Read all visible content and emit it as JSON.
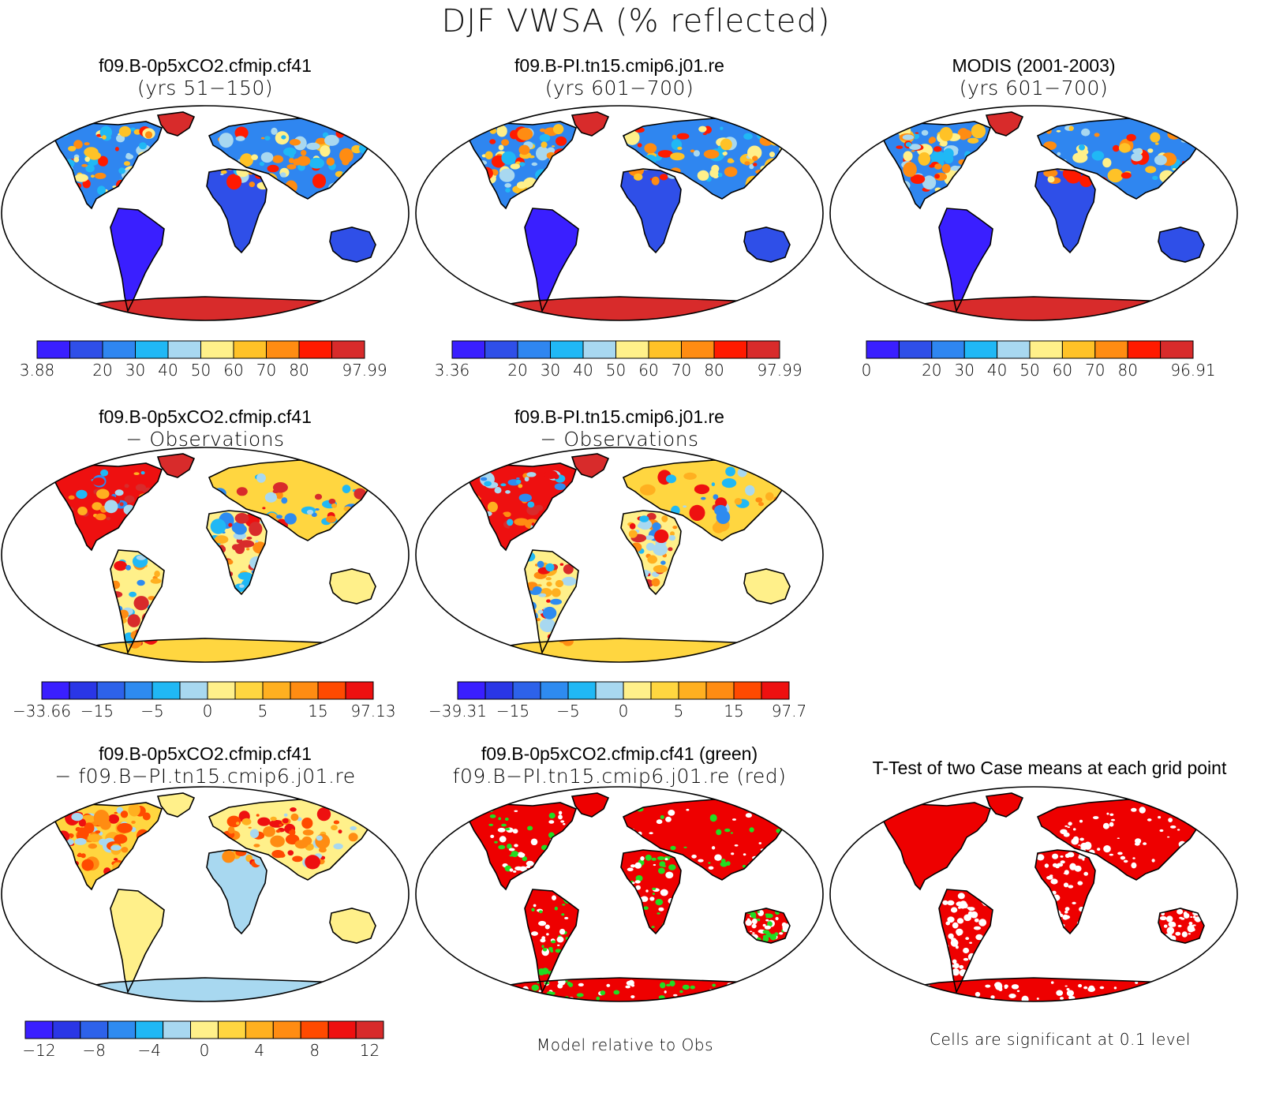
{
  "title": "DJF VWSA (% reflected)",
  "land_colors": {
    "ocean": "#ffffff",
    "outline": "#000000",
    "green": "#22dd22",
    "red": "#ee0000"
  },
  "palette_abs": [
    "#3a1fff",
    "#2f4fe8",
    "#2f86f0",
    "#20b8f5",
    "#a8d8f0",
    "#fff08a",
    "#ffc227",
    "#ff8c12",
    "#ff1a00",
    "#d82b2b"
  ],
  "palette_diff": [
    "#3a1fff",
    "#2a36e6",
    "#2d62ea",
    "#2e8bf0",
    "#20b8f5",
    "#a8d8f0",
    "#fff08a",
    "#ffd640",
    "#ffb020",
    "#ff8c12",
    "#ff4a00",
    "#ee1010",
    "#d82b2b"
  ],
  "panels": [
    {
      "id": "p1",
      "line1": "f09.B-0p5xCO2.cfmip.cf41",
      "line2": "(yrs 51−150)",
      "scheme": "abs"
    },
    {
      "id": "p2",
      "line1": "f09.B-PI.tn15.cmip6.j01.re",
      "line2": "(yrs 601−700)",
      "scheme": "abs2"
    },
    {
      "id": "p3",
      "line1": "MODIS (2001-2003)",
      "line2": "(yrs 601−700)",
      "scheme": "modis"
    },
    {
      "id": "p4",
      "line1": "f09.B-0p5xCO2.cfmip.cf41",
      "line2": "− Observations",
      "scheme": "bias1"
    },
    {
      "id": "p5",
      "line1": "f09.B-PI.tn15.cmip6.j01.re",
      "line2": "− Observations",
      "scheme": "bias2"
    },
    {
      "id": "p6",
      "line1": "f09.B-0p5xCO2.cfmip.cf41",
      "line2": "− f09.B−PI.tn15.cmip6.j01.re",
      "scheme": "diff"
    },
    {
      "id": "p7",
      "line1": "f09.B-0p5xCO2.cfmip.cf41 (green)",
      "line2": "f09.B−PI.tn15.cmip6.j01.re (red)",
      "scheme": "gr"
    },
    {
      "id": "p8",
      "line1": "T-Test of two Case means at each grid point",
      "line2": "",
      "scheme": "ttest"
    }
  ],
  "colorbars": {
    "cb1": [
      "3.88",
      "20",
      "30",
      "40",
      "50",
      "60",
      "70",
      "80",
      "97.99"
    ],
    "cb2": [
      "3.36",
      "20",
      "30",
      "40",
      "50",
      "60",
      "70",
      "80",
      "97.99"
    ],
    "cb3": [
      "0",
      "20",
      "30",
      "40",
      "50",
      "60",
      "70",
      "80",
      "96.91"
    ],
    "cb4": [
      "−33.66",
      "−15",
      "−5",
      "0",
      "5",
      "15",
      "97.13"
    ],
    "cb5": [
      "−39.31",
      "−15",
      "−5",
      "0",
      "5",
      "15",
      "97.7"
    ],
    "cb6": [
      "−12",
      "−8",
      "−4",
      "0",
      "4",
      "8",
      "12"
    ]
  },
  "notes": {
    "model_rel": "Model relative to Obs",
    "significance": "Cells are significant at 0.1 level"
  }
}
